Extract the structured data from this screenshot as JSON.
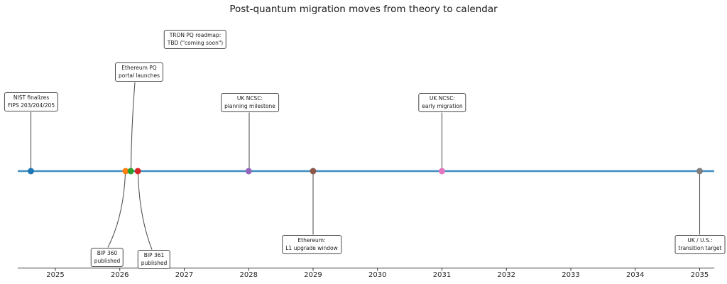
{
  "title": "Post-quantum migration moves from theory to calendar",
  "chart_data": {
    "type": "scatter",
    "subtype": "timeline",
    "title": "Post-quantum migration moves from theory to calendar",
    "xlabel": "",
    "ylabel": "",
    "x_ticks": [
      "2025",
      "2026",
      "2027",
      "2028",
      "2029",
      "2030",
      "2031",
      "2032",
      "2033",
      "2034",
      "2035"
    ],
    "xlim": [
      2024.42,
      2035.22
    ],
    "timeline_color": "#3f8fc0",
    "axis_color": "#333333",
    "leader_color": "#555555",
    "events": [
      {
        "label_line1": "NIST finalizes",
        "label_line2": "FIPS 203/204/205",
        "year": 2024.62,
        "marker_color": "#1f77b4",
        "label_position": "above"
      },
      {
        "label_line1": "BIP 360",
        "label_line2": "published",
        "year": 2026.09,
        "marker_color": "#ff7f0e",
        "label_position": "below"
      },
      {
        "label_line1": "Ethereum PQ",
        "label_line2": "portal launches",
        "year": 2026.17,
        "marker_color": "#2ca02c",
        "label_position": "above"
      },
      {
        "label_line1": "BIP 361",
        "label_line2": "published",
        "year": 2026.28,
        "marker_color": "#d62728",
        "label_position": "below"
      },
      {
        "label_line1": "UK NCSC:",
        "label_line2": "planning milestone",
        "year": 2028.0,
        "marker_color": "#9467bd",
        "label_position": "above"
      },
      {
        "label_line1": "Ethereum:",
        "label_line2": "L1 upgrade window",
        "year": 2029.0,
        "marker_color": "#8c564b",
        "label_position": "below"
      },
      {
        "label_line1": "UK NCSC:",
        "label_line2": "early migration",
        "year": 2031.0,
        "marker_color": "#e377c2",
        "label_position": "above"
      },
      {
        "label_line1": "UK / U.S.:",
        "label_line2": "transition target",
        "year": 2035.0,
        "marker_color": "#7f7f7f",
        "label_position": "below"
      },
      {
        "label_line1": "TRON PQ roadmap:",
        "label_line2": "TBD (\"coming soon\")",
        "year": null,
        "marker_color": null,
        "label_position": "above"
      }
    ]
  }
}
